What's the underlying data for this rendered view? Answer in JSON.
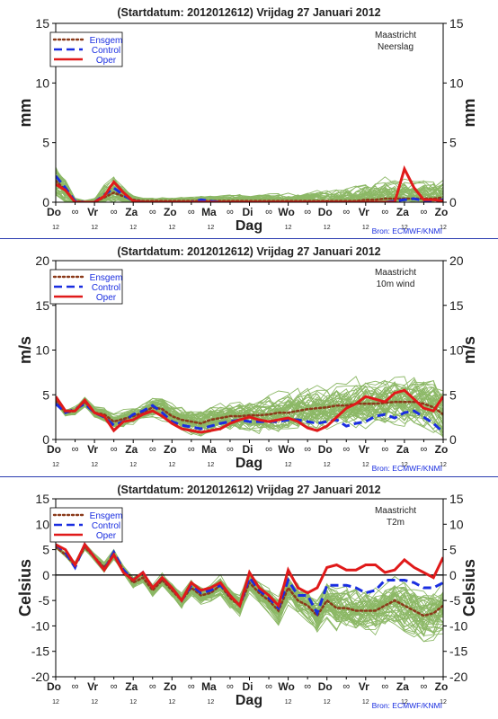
{
  "colors": {
    "ensemble": "#8cb866",
    "ensgem": "#8b3a1a",
    "control": "#1a2ee0",
    "oper": "#e01a1a",
    "axis": "#000000",
    "source": "#1a2ee0",
    "separator": "#2a3bb0"
  },
  "shared": {
    "days": [
      "Do",
      "Vr",
      "Za",
      "Zo",
      "Ma",
      "Di",
      "Wo",
      "Do",
      "Vr",
      "Za",
      "Zo"
    ],
    "hours_top": [
      "∞",
      "∞",
      "∞",
      "∞",
      "∞",
      "∞",
      "∞",
      "∞",
      "∞",
      "∞"
    ],
    "hours_bottom": [
      "12",
      "12",
      "12",
      "12",
      "12",
      "12",
      "12",
      "12",
      "12",
      "12",
      "12"
    ],
    "xlabel": "Dag",
    "source_label": "Bron: ECMWF/KNMI",
    "legend": [
      "Ensgem",
      "Control",
      "Oper"
    ],
    "x_hours_start": 0,
    "x_hours_end": 240
  },
  "chart_data": [
    {
      "type": "line",
      "title": "(Startdatum: 2012012612)   Vrijdag   27 Januari   2012",
      "location": "Maastricht",
      "variable": "Neerslag",
      "ylabel": "mm",
      "ylim": [
        0,
        15
      ],
      "yticks": [
        "0",
        "5",
        "10",
        "15"
      ],
      "zero_line": false,
      "x_hours": [
        0,
        6,
        12,
        18,
        24,
        30,
        36,
        42,
        48,
        54,
        60,
        66,
        72,
        78,
        84,
        90,
        96,
        102,
        108,
        114,
        120,
        126,
        132,
        138,
        144,
        150,
        156,
        162,
        168,
        174,
        180,
        186,
        192,
        198,
        204,
        210,
        216,
        222,
        228,
        234,
        240
      ],
      "series": [
        {
          "name": "Ensgem",
          "values": [
            1.8,
            1.0,
            0.1,
            0,
            0,
            0.4,
            0.8,
            0.5,
            0.2,
            0.1,
            0.1,
            0.1,
            0.1,
            0.1,
            0.1,
            0.1,
            0.1,
            0.1,
            0.1,
            0.1,
            0.1,
            0.1,
            0.1,
            0.1,
            0.1,
            0.1,
            0.1,
            0.1,
            0.1,
            0.1,
            0.1,
            0.1,
            0.2,
            0.2,
            0.3,
            0.3,
            0.3,
            0.3,
            0.3,
            0.3,
            0.4
          ]
        },
        {
          "name": "Control",
          "values": [
            2.2,
            1.2,
            0.1,
            0,
            0,
            0.6,
            1.2,
            0.6,
            0.1,
            0,
            0,
            0,
            0,
            0,
            0,
            0.2,
            0.1,
            0,
            0,
            0,
            0,
            0,
            0,
            0,
            0,
            0,
            0,
            0,
            0,
            0,
            0,
            0,
            0,
            0,
            0,
            0.1,
            0.2,
            0.3,
            0.1,
            0.1,
            0.2
          ]
        },
        {
          "name": "Oper",
          "values": [
            1.5,
            1.0,
            0,
            0,
            0,
            0.5,
            1.7,
            0.8,
            0.1,
            0,
            0,
            0,
            0,
            0,
            0,
            0,
            0,
            0,
            0,
            0,
            0,
            0,
            0,
            0,
            0,
            0,
            0,
            0,
            0,
            0,
            0,
            0,
            0,
            0,
            0,
            0,
            2.8,
            1.2,
            0.2,
            0.2,
            0.1
          ]
        }
      ],
      "ensemble": {
        "members": 50,
        "base_values": [
          1.8,
          1.0,
          0.1,
          0,
          0,
          0.4,
          0.8,
          0.5,
          0.2,
          0.1,
          0.1,
          0.1,
          0.1,
          0.1,
          0.1,
          0.1,
          0.1,
          0.1,
          0.1,
          0.1,
          0.1,
          0.1,
          0.1,
          0.1,
          0.1,
          0.1,
          0.1,
          0.1,
          0.1,
          0.1,
          0.1,
          0.1,
          0.2,
          0.2,
          0.3,
          0.3,
          0.3,
          0.3,
          0.3,
          0.3,
          0.4
        ],
        "spread": [
          2.5,
          1.5,
          0.3,
          0.2,
          0.5,
          1.5,
          1.8,
          1.0,
          0.5,
          0.3,
          0.3,
          0.4,
          0.4,
          0.5,
          0.5,
          0.6,
          0.6,
          0.6,
          0.6,
          0.7,
          0.7,
          0.8,
          0.8,
          0.9,
          0.9,
          1.0,
          1.0,
          1.2,
          1.3,
          1.5,
          1.8,
          2.0,
          2.2,
          2.4,
          2.5,
          2.5,
          2.5,
          2.4,
          2.4,
          2.3,
          2.3
        ],
        "floor": 0
      }
    },
    {
      "type": "line",
      "title": "(Startdatum: 2012012612)   Vrijdag   27 Januari   2012",
      "location": "Maastricht",
      "variable": "10m wind",
      "ylabel": "m/s",
      "ylim": [
        0,
        20
      ],
      "yticks": [
        "0",
        "5",
        "10",
        "15",
        "20"
      ],
      "zero_line": false,
      "x_hours": [
        0,
        6,
        12,
        18,
        24,
        30,
        36,
        42,
        48,
        54,
        60,
        66,
        72,
        78,
        84,
        90,
        96,
        102,
        108,
        114,
        120,
        126,
        132,
        138,
        144,
        150,
        156,
        162,
        168,
        174,
        180,
        186,
        192,
        198,
        204,
        210,
        216,
        222,
        228,
        234,
        240
      ],
      "series": [
        {
          "name": "Ensgem",
          "values": [
            4.3,
            3.0,
            3.2,
            4.2,
            3.0,
            2.8,
            2.0,
            2.3,
            2.6,
            3.0,
            3.6,
            3.4,
            2.6,
            2.2,
            2.0,
            1.8,
            2.2,
            2.4,
            2.6,
            2.6,
            2.7,
            2.7,
            2.8,
            3.0,
            3.0,
            3.2,
            3.4,
            3.5,
            3.6,
            3.8,
            3.8,
            4.0,
            4.0,
            4.0,
            4.1,
            4.2,
            4.2,
            4.2,
            4.0,
            3.6,
            2.8
          ]
        },
        {
          "name": "Control",
          "values": [
            4.0,
            3.0,
            3.4,
            4.0,
            3.0,
            2.5,
            1.6,
            2.0,
            2.8,
            3.2,
            3.8,
            3.0,
            2.0,
            1.6,
            1.4,
            1.2,
            1.5,
            1.8,
            2.0,
            2.2,
            2.0,
            2.0,
            2.0,
            2.0,
            2.2,
            2.2,
            2.0,
            1.8,
            2.0,
            2.2,
            1.5,
            1.8,
            2.0,
            2.6,
            2.8,
            2.4,
            3.0,
            3.2,
            2.5,
            1.8,
            0.8
          ]
        },
        {
          "name": "Oper",
          "values": [
            4.8,
            3.2,
            3.2,
            4.4,
            3.0,
            2.6,
            1.0,
            2.0,
            2.2,
            2.8,
            3.2,
            2.6,
            1.8,
            1.2,
            1.0,
            0.8,
            1.0,
            1.2,
            1.8,
            2.2,
            2.5,
            2.2,
            2.0,
            2.2,
            2.4,
            2.0,
            1.3,
            1.0,
            1.5,
            2.5,
            3.5,
            4.0,
            4.8,
            4.5,
            4.2,
            5.2,
            5.5,
            4.5,
            3.5,
            3.2,
            4.8
          ]
        }
      ],
      "ensemble": {
        "members": 50,
        "base_values": [
          4.3,
          3.0,
          3.2,
          4.2,
          3.0,
          2.8,
          2.0,
          2.3,
          2.6,
          3.0,
          3.6,
          3.4,
          2.6,
          2.2,
          2.0,
          1.8,
          2.2,
          2.4,
          2.6,
          2.6,
          2.7,
          2.7,
          2.8,
          3.0,
          3.0,
          3.2,
          3.4,
          3.5,
          3.6,
          3.8,
          3.8,
          4.0,
          4.0,
          4.0,
          4.1,
          4.2,
          4.2,
          4.2,
          4.0,
          3.6,
          2.8
        ],
        "spread": [
          0.6,
          0.6,
          0.8,
          0.8,
          1.0,
          1.1,
          1.2,
          1.3,
          1.4,
          1.5,
          1.6,
          1.7,
          1.8,
          1.9,
          2.0,
          2.1,
          2.2,
          2.3,
          2.4,
          2.5,
          2.6,
          2.7,
          2.8,
          2.9,
          3.0,
          3.1,
          3.2,
          3.3,
          3.4,
          3.5,
          3.5,
          3.6,
          3.6,
          3.7,
          3.7,
          3.8,
          3.8,
          3.9,
          3.9,
          4.0,
          4.0
        ],
        "floor": 0
      }
    },
    {
      "type": "line",
      "title": "(Startdatum: 2012012612)   Vrijdag   27 Januari   2012",
      "location": "Maastricht",
      "variable": "T2m",
      "ylabel": "Celsius",
      "ylim": [
        -20,
        15
      ],
      "yticks": [
        "-20",
        "-15",
        "-10",
        "-5",
        "0",
        "5",
        "10",
        "15"
      ],
      "zero_line": true,
      "x_hours": [
        0,
        6,
        12,
        18,
        24,
        30,
        36,
        42,
        48,
        54,
        60,
        66,
        72,
        78,
        84,
        90,
        96,
        102,
        108,
        114,
        120,
        126,
        132,
        138,
        144,
        150,
        156,
        162,
        168,
        174,
        180,
        186,
        192,
        198,
        204,
        210,
        216,
        222,
        228,
        234,
        240
      ],
      "series": [
        {
          "name": "Ensgem",
          "values": [
            5.5,
            4.0,
            2.0,
            5.5,
            3.5,
            1.5,
            4.0,
            1.0,
            -1.5,
            -0.5,
            -3.0,
            -1.0,
            -3.0,
            -5.0,
            -2.5,
            -4.0,
            -3.5,
            -2.0,
            -4.5,
            -6.0,
            -1.5,
            -3.5,
            -5.0,
            -7.0,
            -2.5,
            -5.0,
            -6.0,
            -8.0,
            -5.0,
            -6.5,
            -6.5,
            -7.0,
            -7.0,
            -7.0,
            -6.0,
            -5.0,
            -6.0,
            -7.0,
            -8.0,
            -7.5,
            -6.0
          ]
        },
        {
          "name": "Control",
          "values": [
            6.0,
            4.5,
            1.5,
            6.0,
            3.5,
            1.0,
            4.5,
            1.0,
            -1.0,
            0.5,
            -2.5,
            -0.5,
            -2.5,
            -5.0,
            -2.0,
            -3.5,
            -3.0,
            -2.0,
            -4.0,
            -6.0,
            -0.5,
            -3.0,
            -4.5,
            -6.5,
            -1.0,
            -4.0,
            -4.0,
            -7.5,
            -2.0,
            -2.0,
            -2.0,
            -2.5,
            -3.5,
            -3.0,
            -1.0,
            -1.0,
            -1.0,
            -1.5,
            -2.5,
            -2.5,
            -1.5
          ]
        },
        {
          "name": "Oper",
          "values": [
            6.0,
            5.0,
            2.0,
            6.0,
            3.5,
            1.0,
            4.0,
            0.5,
            -1.0,
            0.5,
            -2.5,
            -0.5,
            -2.5,
            -5.0,
            -1.5,
            -3.0,
            -2.5,
            -1.5,
            -4.0,
            -6.0,
            0.5,
            -2.5,
            -4.0,
            -6.0,
            1.0,
            -2.5,
            -3.5,
            -2.5,
            1.5,
            2.0,
            1.0,
            1.0,
            2.0,
            2.0,
            0.5,
            1.0,
            3.0,
            1.5,
            0.5,
            -0.5,
            3.5
          ]
        }
      ],
      "ensemble": {
        "members": 50,
        "base_values": [
          5.5,
          4.0,
          2.0,
          5.5,
          3.5,
          1.5,
          4.0,
          1.0,
          -1.5,
          -0.5,
          -3.0,
          -1.0,
          -3.0,
          -5.0,
          -2.5,
          -4.0,
          -3.5,
          -2.0,
          -4.5,
          -6.0,
          -1.5,
          -3.5,
          -5.0,
          -7.0,
          -2.5,
          -5.0,
          -6.0,
          -8.0,
          -5.0,
          -6.5,
          -6.5,
          -7.0,
          -7.0,
          -7.0,
          -6.0,
          -5.0,
          -6.0,
          -7.0,
          -8.0,
          -7.5,
          -6.0
        ],
        "spread": [
          0.5,
          0.6,
          0.8,
          1.0,
          1.0,
          1.2,
          1.3,
          1.4,
          1.5,
          1.6,
          1.7,
          1.8,
          1.9,
          2.0,
          2.1,
          2.2,
          2.4,
          2.6,
          2.8,
          3.0,
          3.2,
          3.4,
          3.6,
          3.8,
          4.0,
          4.2,
          4.5,
          4.8,
          5.0,
          5.5,
          6.0,
          6.2,
          6.4,
          6.6,
          6.8,
          7.0,
          7.0,
          7.0,
          7.0,
          7.0,
          7.0
        ],
        "floor": null
      }
    }
  ]
}
